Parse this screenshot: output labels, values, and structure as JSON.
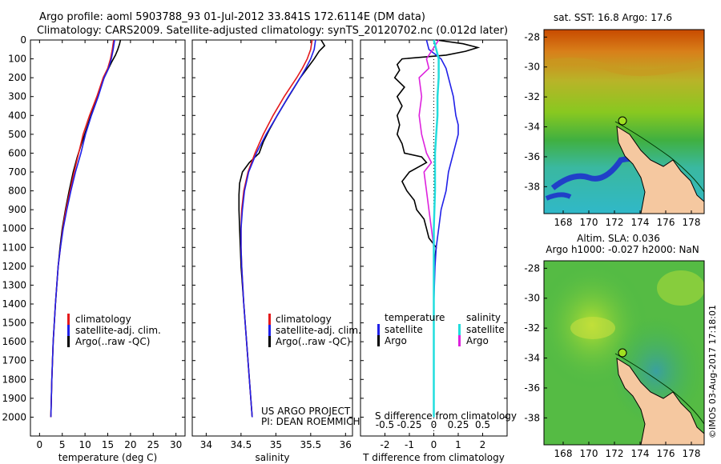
{
  "header": {
    "line1": "Argo profile: aoml 5903788_93 01-Jul-2012 33.841S 172.6114E (DM data)",
    "line2": "Climatology: CARS2009. Satellite-adjusted climatology: synTS_20120702.nc (0.012d later)"
  },
  "colors": {
    "clim": "#e41a1c",
    "sat": "#2020e8",
    "argo": "#000000",
    "sat_s": "#22dddd",
    "argo_s": "#dd22dd",
    "land": "#f5c8a0",
    "coast": "#000000"
  },
  "chart_data": [
    {
      "type": "line",
      "panel": "temperature",
      "xlabel": "temperature (deg C)",
      "ylabel": "",
      "xlim": [
        -2,
        32
      ],
      "ylim": [
        2100,
        0
      ],
      "xticks": [
        0,
        5,
        10,
        15,
        20,
        25,
        30
      ],
      "yticks": [
        0,
        100,
        200,
        300,
        400,
        500,
        600,
        700,
        800,
        900,
        1000,
        1100,
        1200,
        1300,
        1400,
        1500,
        1600,
        1700,
        1800,
        1900,
        2000
      ],
      "legend": [
        "climatology",
        "satellite-adj. clim.",
        "Argo(..raw -QC)"
      ],
      "series": [
        {
          "name": "Argo",
          "color": "argo",
          "depth": [
            0,
            20,
            50,
            80,
            120,
            160,
            200,
            260,
            320,
            400,
            480,
            560,
            620,
            700,
            800,
            900,
            1000,
            1100,
            1200,
            1400,
            1600,
            1800,
            2000
          ],
          "values": [
            17.8,
            17.6,
            17.2,
            16.7,
            15.8,
            15.0,
            14.2,
            13.3,
            12.5,
            11.3,
            10.2,
            9.1,
            8.3,
            7.4,
            6.5,
            5.7,
            5.0,
            4.5,
            4.1,
            3.5,
            3.0,
            2.7,
            2.5
          ]
        },
        {
          "name": "climatology",
          "color": "clim",
          "depth": [
            0,
            50,
            100,
            150,
            200,
            300,
            400,
            500,
            600,
            700,
            800,
            900,
            1000,
            1100,
            1200,
            1400,
            1600,
            1800,
            2000
          ],
          "values": [
            16.3,
            16.0,
            15.6,
            15.0,
            14.0,
            12.6,
            11.0,
            9.6,
            8.6,
            7.6,
            6.7,
            5.8,
            5.1,
            4.6,
            4.1,
            3.5,
            3.0,
            2.7,
            2.5
          ]
        },
        {
          "name": "satellite",
          "color": "sat",
          "depth": [
            0,
            50,
            100,
            150,
            200,
            300,
            400,
            500,
            600,
            700,
            800,
            900,
            1000,
            1100,
            1200,
            1400,
            1600,
            1800,
            2000
          ],
          "values": [
            16.5,
            16.2,
            15.8,
            15.2,
            14.2,
            12.9,
            11.4,
            10.1,
            9.1,
            7.9,
            6.9,
            6.0,
            5.2,
            4.6,
            4.1,
            3.5,
            3.0,
            2.7,
            2.5
          ]
        }
      ]
    },
    {
      "type": "line",
      "panel": "salinity",
      "xlabel": "salinity",
      "xlim": [
        33.8,
        36.1
      ],
      "ylim": [
        2100,
        0
      ],
      "xticks": [
        34,
        34.5,
        35,
        35.5,
        36
      ],
      "legend": [
        "climatology",
        "satellite-adj. clim.",
        "Argo(..raw -QC)"
      ],
      "annotation": [
        "US ARGO PROJECT",
        "PI: DEAN ROEMMICH"
      ],
      "series": [
        {
          "name": "Argo",
          "color": "argo",
          "depth": [
            0,
            30,
            60,
            100,
            150,
            200,
            260,
            320,
            400,
            480,
            540,
            600,
            650,
            700,
            760,
            820,
            900,
            1000,
            1100,
            1200,
            1400,
            1600,
            1800,
            2000
          ],
          "values": [
            35.65,
            35.7,
            35.62,
            35.55,
            35.45,
            35.35,
            35.25,
            35.15,
            35.02,
            34.9,
            34.82,
            34.76,
            34.62,
            34.52,
            34.48,
            34.47,
            34.47,
            34.48,
            34.49,
            34.5,
            34.54,
            34.58,
            34.62,
            34.66
          ]
        },
        {
          "name": "climatology",
          "color": "clim",
          "depth": [
            0,
            50,
            100,
            150,
            200,
            300,
            400,
            500,
            600,
            700,
            800,
            900,
            1000,
            1100,
            1200,
            1400,
            1600,
            1800,
            2000
          ],
          "values": [
            35.52,
            35.5,
            35.45,
            35.38,
            35.3,
            35.12,
            34.96,
            34.82,
            34.7,
            34.6,
            34.54,
            34.51,
            34.5,
            34.5,
            34.51,
            34.54,
            34.58,
            34.62,
            34.66
          ]
        },
        {
          "name": "satellite",
          "color": "sat",
          "depth": [
            0,
            50,
            100,
            150,
            200,
            300,
            400,
            500,
            600,
            700,
            800,
            900,
            1000,
            1100,
            1200,
            1400,
            1600,
            1800,
            2000
          ],
          "values": [
            35.57,
            35.55,
            35.5,
            35.43,
            35.35,
            35.18,
            35.02,
            34.86,
            34.72,
            34.61,
            34.55,
            34.52,
            34.5,
            34.5,
            34.51,
            34.54,
            34.58,
            34.62,
            34.66
          ]
        }
      ]
    },
    {
      "type": "line",
      "panel": "difference",
      "xlabel": "T difference from climatology",
      "x2label": "S difference from climatology",
      "xlim": [
        -3,
        3
      ],
      "ylim": [
        2100,
        0
      ],
      "xticks": [
        -2,
        -1,
        0,
        1,
        2
      ],
      "x2ticks": [
        "-0.5",
        "-0.25",
        "0",
        "0.25",
        "0.5"
      ],
      "x2tickvals": [
        -2,
        -1,
        0,
        1,
        2
      ],
      "legend_t": [
        "temperature",
        "satellite",
        "Argo"
      ],
      "legend_s": [
        "salinity",
        "satellite",
        "Argo"
      ],
      "series": [
        {
          "name": "T Argo",
          "color": "argo",
          "depth": [
            0,
            20,
            40,
            60,
            80,
            100,
            130,
            160,
            200,
            250,
            300,
            350,
            400,
            450,
            500,
            550,
            600,
            620,
            650,
            700,
            750,
            800,
            850,
            900,
            950,
            1000,
            1050,
            1100,
            1200,
            1400,
            1600,
            1800,
            2000
          ],
          "values": [
            0.1,
            1.2,
            1.8,
            1.3,
            0.5,
            -1.3,
            -1.5,
            -1.4,
            -1.6,
            -1.2,
            -1.5,
            -1.3,
            -1.5,
            -1.4,
            -1.5,
            -1.3,
            -1.2,
            -0.5,
            -0.3,
            -1.0,
            -1.3,
            -1.1,
            -0.8,
            -0.7,
            -0.4,
            -0.3,
            -0.2,
            0.1,
            0.0,
            0.0,
            0.0,
            0.0,
            0.0
          ]
        },
        {
          "name": "T satellite",
          "color": "sat",
          "depth": [
            0,
            50,
            100,
            150,
            200,
            300,
            400,
            450,
            500,
            600,
            700,
            800,
            900,
            1000,
            1100,
            1200,
            1400,
            1600,
            1800,
            2000
          ],
          "values": [
            -0.3,
            -0.2,
            0.3,
            0.5,
            0.6,
            0.8,
            0.9,
            1.0,
            1.0,
            0.8,
            0.6,
            0.5,
            0.3,
            0.2,
            0.1,
            0.05,
            0.0,
            0.0,
            0.0,
            0.0
          ]
        },
        {
          "name": "S Argo",
          "color": "argo_s",
          "depth": [
            0,
            100,
            150,
            200,
            300,
            400,
            500,
            550,
            600,
            650,
            700,
            800,
            900,
            1000,
            1100
          ],
          "values": [
            0.2,
            -0.3,
            -0.2,
            -0.6,
            -0.5,
            -0.6,
            -0.5,
            -0.4,
            -0.3,
            -0.1,
            -0.4,
            -0.3,
            -0.2,
            -0.1,
            0.0
          ]
        },
        {
          "name": "S satellite",
          "color": "sat_s",
          "depth": [
            0,
            100,
            200,
            300,
            400,
            500,
            600,
            700,
            800,
            1000,
            1200,
            1400,
            1600,
            1800,
            2000
          ],
          "values": [
            0.0,
            0.2,
            0.2,
            0.15,
            0.15,
            0.1,
            0.05,
            0.05,
            0.05,
            0.0,
            0.0,
            0.0,
            0.0,
            0.0,
            0.0
          ]
        }
      ]
    },
    {
      "type": "heatmap",
      "panel": "sst-map",
      "title": "sat. SST: 16.8 Argo: 17.6",
      "xticks": [
        168,
        170,
        172,
        174,
        176,
        178
      ],
      "yticks": [
        -28,
        -30,
        -32,
        -34,
        -36,
        -38
      ],
      "xlim": [
        166.5,
        179
      ],
      "ylim": [
        -39.8,
        -27.5
      ]
    },
    {
      "type": "heatmap",
      "panel": "sla-map",
      "title": [
        "Altim. SLA: 0.036",
        "Argo h1000: -0.027 h2000: NaN"
      ],
      "xticks": [
        168,
        170,
        172,
        174,
        176,
        178
      ],
      "yticks": [
        -28,
        -30,
        -32,
        -34,
        -36,
        -38
      ],
      "xlim": [
        166.5,
        179
      ],
      "ylim": [
        -39.8,
        -27.5
      ]
    }
  ],
  "footer": {
    "stamp": "©IMOS 03-Aug-2017 17:18:01"
  }
}
